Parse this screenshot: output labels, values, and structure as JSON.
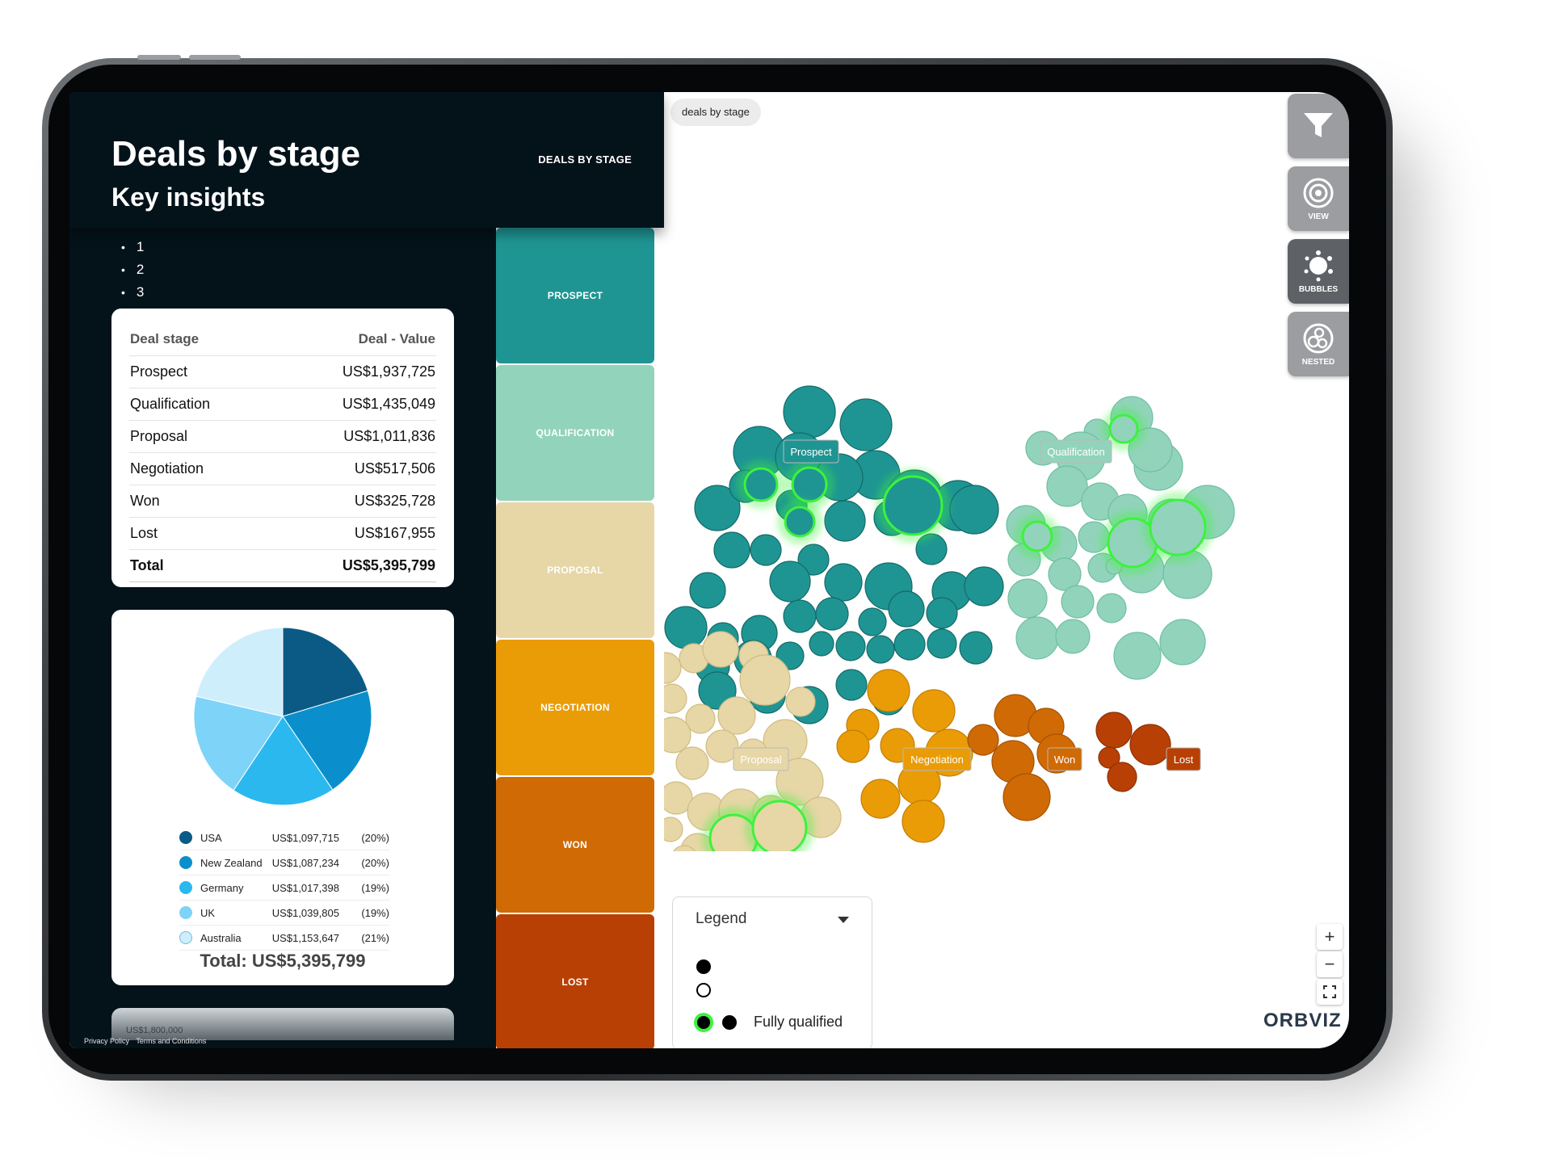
{
  "header": {
    "title": "Deals by stage",
    "subtitle": "Key insights",
    "nav_label": "DEALS BY STAGE"
  },
  "insights": [
    "1",
    "2",
    "3"
  ],
  "deal_table": {
    "headers": [
      "Deal stage",
      "Deal - Value"
    ],
    "rows": [
      {
        "stage": "Prospect",
        "value": "US$1,937,725"
      },
      {
        "stage": "Qualification",
        "value": "US$1,435,049"
      },
      {
        "stage": "Proposal",
        "value": "US$1,011,836"
      },
      {
        "stage": "Negotiation",
        "value": "US$517,506"
      },
      {
        "stage": "Won",
        "value": "US$325,728"
      },
      {
        "stage": "Lost",
        "value": "US$167,955"
      }
    ],
    "total": {
      "label": "Total",
      "value": "US$5,395,799"
    }
  },
  "pie": {
    "slices": [
      {
        "name": "USA",
        "value": "US$1,097,715",
        "pct": "(20%)",
        "share": 20.34,
        "color": "#0b5a86"
      },
      {
        "name": "New Zealand",
        "value": "US$1,087,234",
        "pct": "(20%)",
        "share": 20.15,
        "color": "#0b8fcc"
      },
      {
        "name": "Germany",
        "value": "US$1,017,398",
        "pct": "(19%)",
        "share": 18.86,
        "color": "#2bb8ef"
      },
      {
        "name": "UK",
        "value": "US$1,039,805",
        "pct": "(19%)",
        "share": 19.27,
        "color": "#7ed3f8"
      },
      {
        "name": "Australia",
        "value": "US$1,153,647",
        "pct": "(21%)",
        "share": 21.38,
        "color": "#cfeefc"
      }
    ],
    "total_label": "Total: US$5,395,799"
  },
  "bottom_card": {
    "text": "US$1,800,000"
  },
  "footer": {
    "privacy": "Privacy Policy",
    "terms": "Terms and Conditions"
  },
  "stages": [
    {
      "label": "PROSPECT",
      "color": "#1f9593"
    },
    {
      "label": "QUALIFICATION",
      "color": "#92d3bb"
    },
    {
      "label": "PROPOSAL",
      "color": "#e7d6a6"
    },
    {
      "label": "NEGOTIATION",
      "color": "#ea9c06"
    },
    {
      "label": "WON",
      "color": "#cf6a05"
    },
    {
      "label": "LOST",
      "color": "#b84004"
    }
  ],
  "breadcrumb": "deals by stage",
  "toolbar": {
    "view": "VIEW",
    "bubbles": "BUBBLES",
    "nested": "NESTED"
  },
  "clusters": {
    "prospect": "Prospect",
    "qualification": "Qualification",
    "proposal": "Proposal",
    "negotiation": "Negotiation",
    "won": "Won",
    "lost": "Lost"
  },
  "legend": {
    "title": "Legend",
    "item_label": "Fully qualified"
  },
  "zoom": {
    "in": "+",
    "out": "−"
  },
  "brand": "ORBVIZ",
  "colors": {
    "panel_bg": "#04121a",
    "highlight": "#3df23d"
  }
}
